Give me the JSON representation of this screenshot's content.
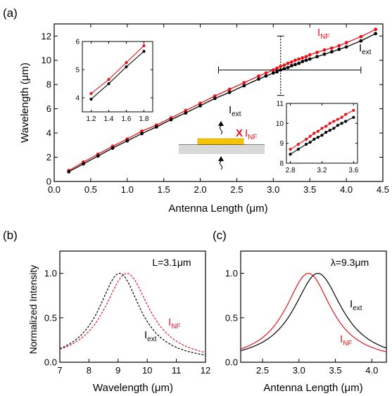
{
  "colors": {
    "ext": "#000000",
    "nf": "#e8141c",
    "substrate": "#d9d9d9",
    "antenna": "#f5c400"
  },
  "chart_data": [
    {
      "panel": "(a)",
      "type": "line",
      "xlabel": "Antenna Length (μm)",
      "ylabel": "Wavelength (μm)",
      "xlim": [
        0,
        4.5
      ],
      "ylim": [
        0,
        13
      ],
      "xticks": [
        "0.0",
        "0.5",
        "1.0",
        "1.5",
        "2.0",
        "2.5",
        "3.0",
        "3.5",
        "4.0",
        "4.5"
      ],
      "yticks": [
        "0",
        "2",
        "4",
        "6",
        "8",
        "10",
        "12"
      ],
      "series": [
        {
          "name": "I_NF",
          "label_main": "I",
          "label_sub": "NF",
          "color": "#e8141c",
          "x": [
            0.2,
            0.4,
            0.6,
            0.8,
            1.0,
            1.2,
            1.4,
            1.6,
            1.8,
            2.0,
            2.2,
            2.4,
            2.6,
            2.8,
            2.9,
            3.0,
            3.05,
            3.1,
            3.15,
            3.2,
            3.25,
            3.3,
            3.35,
            3.4,
            3.45,
            3.5,
            3.6,
            3.7,
            3.8,
            3.9,
            4.0,
            4.2,
            4.4
          ],
          "y": [
            0.9,
            1.6,
            2.25,
            2.9,
            3.5,
            4.15,
            4.65,
            5.25,
            5.85,
            6.45,
            7.05,
            7.6,
            8.15,
            8.7,
            8.95,
            9.2,
            9.35,
            9.5,
            9.6,
            9.75,
            9.85,
            10.0,
            10.1,
            10.2,
            10.3,
            10.45,
            10.65,
            10.85,
            11.0,
            11.2,
            11.45,
            11.95,
            12.55
          ]
        },
        {
          "name": "I_ext",
          "label_main": "I",
          "label_sub": "ext",
          "color": "#000000",
          "x": [
            0.2,
            0.4,
            0.6,
            0.8,
            1.0,
            1.2,
            1.4,
            1.6,
            1.8,
            2.0,
            2.2,
            2.4,
            2.6,
            2.8,
            2.9,
            3.0,
            3.05,
            3.1,
            3.15,
            3.2,
            3.25,
            3.3,
            3.35,
            3.4,
            3.45,
            3.5,
            3.6,
            3.7,
            3.8,
            3.9,
            4.0,
            4.2,
            4.4
          ],
          "y": [
            0.8,
            1.45,
            2.1,
            2.75,
            3.35,
            3.95,
            4.5,
            5.1,
            5.65,
            6.25,
            6.85,
            7.35,
            7.9,
            8.45,
            8.7,
            8.95,
            9.05,
            9.2,
            9.3,
            9.4,
            9.55,
            9.65,
            9.75,
            9.9,
            10.0,
            10.1,
            10.3,
            10.5,
            10.7,
            10.9,
            11.1,
            11.6,
            12.2
          ]
        }
      ],
      "errorbar": {
        "x": 3.1,
        "y": 9.2,
        "xerr": [
          2.25,
          4.2
        ],
        "yerr": [
          7.1,
          12.0
        ]
      },
      "inset_left": {
        "xlim": [
          1.1,
          1.9
        ],
        "ylim": [
          3.5,
          6
        ],
        "xticks": [
          "1.2",
          "1.4",
          "1.6",
          "1.8"
        ],
        "yticks": [
          "4",
          "5",
          "6"
        ],
        "nf": {
          "x": [
            1.2,
            1.4,
            1.6,
            1.8
          ],
          "y": [
            4.15,
            4.65,
            5.25,
            5.85
          ]
        },
        "ext": {
          "x": [
            1.2,
            1.4,
            1.6,
            1.8
          ],
          "y": [
            3.95,
            4.5,
            5.1,
            5.65
          ]
        }
      },
      "inset_right": {
        "xlim": [
          2.75,
          3.65
        ],
        "ylim": [
          8,
          11
        ],
        "xticks": [
          "2.8",
          "3.2",
          "3.6"
        ],
        "yticks": [
          "8",
          "9",
          "10",
          "11"
        ],
        "nf": {
          "x": [
            2.8,
            2.9,
            3.0,
            3.05,
            3.1,
            3.15,
            3.2,
            3.25,
            3.3,
            3.35,
            3.4,
            3.45,
            3.5,
            3.6
          ],
          "y": [
            8.7,
            8.95,
            9.2,
            9.35,
            9.5,
            9.6,
            9.75,
            9.85,
            10.0,
            10.1,
            10.2,
            10.3,
            10.45,
            10.65
          ]
        },
        "ext": {
          "x": [
            2.8,
            2.9,
            3.0,
            3.05,
            3.1,
            3.15,
            3.2,
            3.25,
            3.3,
            3.35,
            3.4,
            3.45,
            3.5,
            3.6
          ],
          "y": [
            8.45,
            8.7,
            8.95,
            9.05,
            9.2,
            9.3,
            9.4,
            9.55,
            9.65,
            9.75,
            9.9,
            10.0,
            10.1,
            10.3
          ]
        }
      },
      "schematic": {
        "ext_label_main": "I",
        "ext_label_sub": "ext",
        "nf_prefix": "X",
        "nf_label_main": "I",
        "nf_label_sub": "NF"
      }
    },
    {
      "panel": "(b)",
      "type": "line",
      "xlabel": "Wavelength (μm)",
      "ylabel": "Normalized Intensity",
      "annotation": "L=3.1μm",
      "xlim": [
        7,
        12
      ],
      "ylim": [
        0,
        1.25
      ],
      "xticks": [
        "7",
        "8",
        "9",
        "10",
        "11",
        "12"
      ],
      "yticks": [
        "0.0",
        "0.5",
        "1.0"
      ],
      "series": [
        {
          "name": "I_ext",
          "label_main": "I",
          "label_sub": "ext",
          "color": "#000000",
          "style": "dashed",
          "peak": 9.05,
          "width": 1.75
        },
        {
          "name": "I_NF",
          "label_main": "I",
          "label_sub": "NF",
          "color": "#e8141c",
          "style": "dashed",
          "peak": 9.3,
          "width": 1.9
        }
      ]
    },
    {
      "panel": "(c)",
      "type": "line",
      "xlabel": "Antenna Length (μm)",
      "annotation": "λ=9.3μm",
      "xlim": [
        2.2,
        4.2
      ],
      "ylim": [
        0,
        1.25
      ],
      "xticks": [
        "2.5",
        "3.0",
        "3.5",
        "4.0"
      ],
      "yticks": [
        "0.0",
        "0.5",
        "1.0"
      ],
      "series": [
        {
          "name": "I_NF",
          "label_main": "I",
          "label_sub": "NF",
          "color": "#e8141c",
          "style": "solid",
          "peak": 3.13,
          "width": 0.78
        },
        {
          "name": "I_ext",
          "label_main": "I",
          "label_sub": "ext",
          "color": "#000000",
          "style": "solid",
          "peak": 3.26,
          "width": 0.82
        }
      ]
    }
  ]
}
